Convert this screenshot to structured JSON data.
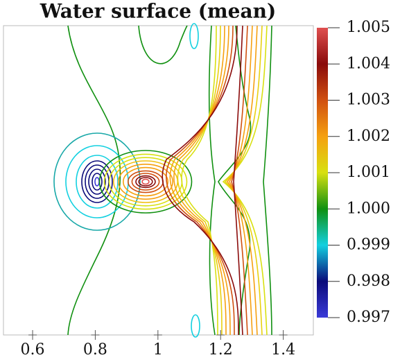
{
  "chart_data": {
    "type": "contour",
    "title": "Water surface (mean)",
    "xlim": [
      0.507,
      1.496
    ],
    "xticks": [
      0.6,
      0.8,
      1,
      1.2,
      1.4
    ],
    "zlim": [
      0.997,
      1.005
    ],
    "zticks": [
      0.997,
      0.998,
      0.999,
      {
        "value": 1.0,
        "label": "1.000"
      },
      1.001,
      1.002,
      1.003,
      1.004,
      1.005
    ],
    "colormap": [
      "#3b3bd8",
      "#0a0a7a",
      "#12d0e0",
      "#109010",
      "#d8e010",
      "#f5a010",
      "#d05010",
      "#8a0a0a",
      "#e05050"
    ]
  }
}
